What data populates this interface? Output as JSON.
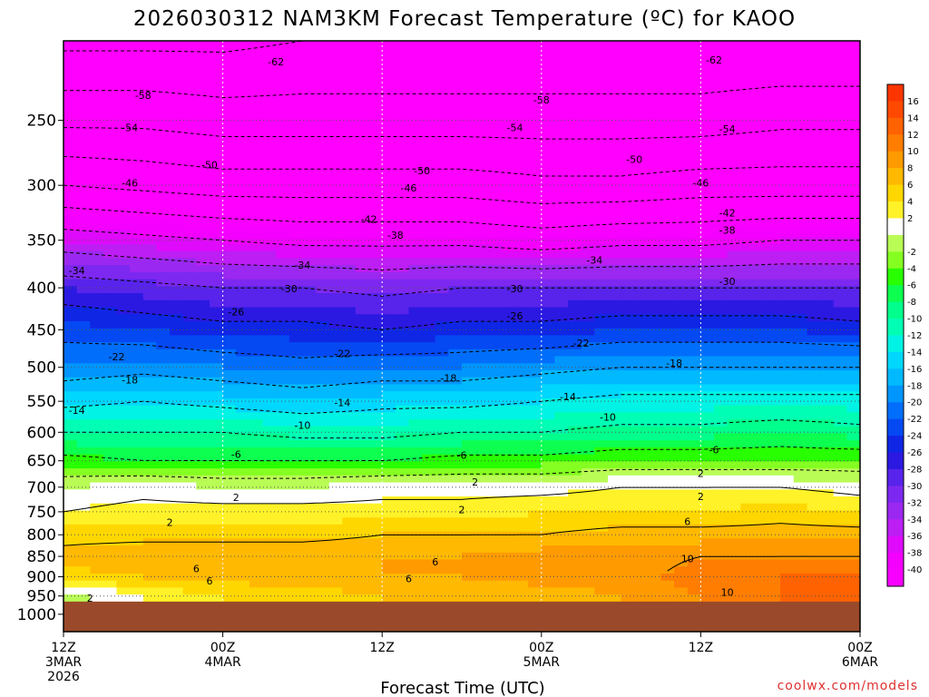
{
  "chart_data": {
    "type": "heatmap",
    "title": "2026030312 NAM3KM Forecast Temperature (ºC) for KAOO",
    "xlabel": "Forecast Time (UTC)",
    "ylabel": "",
    "y_scale": "log-pressure",
    "ylim": [
      1050,
      200
    ],
    "y_ticks": [
      250,
      300,
      350,
      400,
      450,
      500,
      550,
      600,
      650,
      700,
      750,
      800,
      850,
      900,
      950,
      1000
    ],
    "x_range_hours": [
      0,
      60
    ],
    "x_ticks": [
      {
        "hour": 0,
        "lines": [
          "12Z",
          "3MAR",
          "2026"
        ]
      },
      {
        "hour": 12,
        "lines": [
          "00Z",
          "4MAR"
        ]
      },
      {
        "hour": 24,
        "lines": [
          "12Z"
        ]
      },
      {
        "hour": 36,
        "lines": [
          "00Z",
          "5MAR"
        ]
      },
      {
        "hour": 48,
        "lines": [
          "12Z"
        ]
      },
      {
        "hour": 60,
        "lines": [
          "00Z",
          "6MAR"
        ]
      }
    ],
    "ground_pressure": 965,
    "times_hours": [
      0,
      6,
      12,
      18,
      24,
      30,
      36,
      42,
      48,
      54,
      60
    ],
    "pressure_levels": [
      200,
      250,
      300,
      350,
      400,
      450,
      500,
      550,
      600,
      650,
      700,
      750,
      800,
      850,
      900,
      950
    ],
    "temperature_columns": [
      [
        -63,
        -55,
        -46,
        -36,
        -28,
        -23,
        -20,
        -15,
        -10,
        -5,
        0,
        2,
        5,
        7,
        5,
        -1
      ],
      [
        -63,
        -55,
        -47,
        -37,
        -29,
        -24,
        -19,
        -14,
        -10,
        -6,
        1,
        3,
        5,
        8,
        6,
        2
      ],
      [
        -63,
        -56,
        -48,
        -38,
        -30,
        -25,
        -20,
        -15,
        -10,
        -6,
        0,
        3,
        5,
        8,
        7,
        4
      ],
      [
        -62,
        -56,
        -48,
        -39,
        -30,
        -25,
        -21,
        -16,
        -11,
        -6,
        0,
        3,
        5,
        8,
        7,
        5
      ],
      [
        -62,
        -56,
        -48,
        -39,
        -31,
        -26,
        -20,
        -15,
        -11,
        -6,
        1,
        3,
        6,
        8,
        8,
        6
      ],
      [
        -62,
        -56,
        -48,
        -39,
        -30,
        -25,
        -20,
        -15,
        -10,
        -5,
        1,
        3,
        6,
        8,
        8,
        6
      ],
      [
        -62,
        -56,
        -49,
        -40,
        -30,
        -25,
        -19,
        -14,
        -10,
        -5,
        1,
        4,
        6,
        9,
        9,
        7
      ],
      [
        -62,
        -56,
        -49,
        -39,
        -30,
        -24,
        -18,
        -13,
        -9,
        -4,
        2,
        4,
        7,
        9,
        9,
        8
      ],
      [
        -62,
        -56,
        -48,
        -39,
        -30,
        -24,
        -18,
        -13,
        -9,
        -4,
        2,
        4,
        7,
        10,
        11,
        10
      ],
      [
        -62,
        -55,
        -48,
        -38,
        -30,
        -24,
        -18,
        -13,
        -8,
        -4,
        2,
        5,
        7,
        10,
        12,
        12
      ],
      [
        -62,
        -55,
        -48,
        -38,
        -30,
        -25,
        -18,
        -13,
        -9,
        -4,
        1,
        4,
        7,
        10,
        12,
        13
      ]
    ],
    "contour_labels": [
      {
        "text": "-62",
        "t": 16,
        "p": 212
      },
      {
        "text": "-62",
        "t": 49,
        "p": 211
      },
      {
        "text": "-58",
        "t": 6,
        "p": 233
      },
      {
        "text": "-58",
        "t": 36,
        "p": 236
      },
      {
        "text": "-54",
        "t": 5,
        "p": 255
      },
      {
        "text": "-54",
        "t": 34,
        "p": 255
      },
      {
        "text": "-54",
        "t": 50,
        "p": 256
      },
      {
        "text": "-50",
        "t": 11,
        "p": 283
      },
      {
        "text": "-50",
        "t": 27,
        "p": 288
      },
      {
        "text": "-50",
        "t": 43,
        "p": 279
      },
      {
        "text": "-46",
        "t": 5,
        "p": 298
      },
      {
        "text": "-46",
        "t": 26,
        "p": 302
      },
      {
        "text": "-46",
        "t": 48,
        "p": 298
      },
      {
        "text": "-42",
        "t": 23,
        "p": 330
      },
      {
        "text": "-42",
        "t": 50,
        "p": 324
      },
      {
        "text": "-38",
        "t": 25,
        "p": 345
      },
      {
        "text": "-38",
        "t": 50,
        "p": 340
      },
      {
        "text": "-34",
        "t": 1,
        "p": 381
      },
      {
        "text": "-34",
        "t": 18,
        "p": 375
      },
      {
        "text": "-34",
        "t": 40,
        "p": 370
      },
      {
        "text": "-30",
        "t": 17,
        "p": 401
      },
      {
        "text": "-30",
        "t": 34,
        "p": 401
      },
      {
        "text": "-30",
        "t": 50,
        "p": 393
      },
      {
        "text": "-26",
        "t": 13,
        "p": 428
      },
      {
        "text": "-26",
        "t": 34,
        "p": 433
      },
      {
        "text": "-22",
        "t": 4,
        "p": 485
      },
      {
        "text": "-22",
        "t": 21,
        "p": 481
      },
      {
        "text": "-22",
        "t": 39,
        "p": 467
      },
      {
        "text": "-18",
        "t": 5,
        "p": 518
      },
      {
        "text": "-18",
        "t": 29,
        "p": 515
      },
      {
        "text": "-18",
        "t": 46,
        "p": 494
      },
      {
        "text": "-14",
        "t": 1,
        "p": 564
      },
      {
        "text": "-14",
        "t": 21,
        "p": 552
      },
      {
        "text": "-14",
        "t": 38,
        "p": 543
      },
      {
        "text": "-10",
        "t": 18,
        "p": 588
      },
      {
        "text": "-10",
        "t": 41,
        "p": 575
      },
      {
        "text": "-6",
        "t": 13,
        "p": 638
      },
      {
        "text": "-6",
        "t": 30,
        "p": 640
      },
      {
        "text": "-6",
        "t": 49,
        "p": 630
      },
      {
        "text": "2",
        "t": 31,
        "p": 690
      },
      {
        "text": "2",
        "t": 48,
        "p": 673
      },
      {
        "text": "2",
        "t": 13,
        "p": 720
      },
      {
        "text": "2",
        "t": 30,
        "p": 745
      },
      {
        "text": "2",
        "t": 48,
        "p": 718
      },
      {
        "text": "2",
        "t": 8,
        "p": 772
      },
      {
        "text": "2",
        "t": 2,
        "p": 955
      },
      {
        "text": "6",
        "t": 47,
        "p": 771
      },
      {
        "text": "6",
        "t": 10,
        "p": 880
      },
      {
        "text": "6",
        "t": 28,
        "p": 863
      },
      {
        "text": "6",
        "t": 11,
        "p": 910
      },
      {
        "text": "6",
        "t": 26,
        "p": 905
      },
      {
        "text": "10",
        "t": 47,
        "p": 855
      },
      {
        "text": "10",
        "t": 50,
        "p": 940
      }
    ],
    "colorbar": {
      "min": -42,
      "max": 18,
      "step": 2,
      "tick_labels": [
        "16",
        "14",
        "12",
        "10",
        "8",
        "6",
        "4",
        "2",
        "-2",
        "-4",
        "-6",
        "-8",
        "-10",
        "-12",
        "-14",
        "-16",
        "-18",
        "-20",
        "-22",
        "-24",
        "-26",
        "-28",
        "-30",
        "-32",
        "-34",
        "-36",
        "-38",
        "-40"
      ]
    },
    "colors": {
      "ground": "#9a4a2a",
      "freezing_line": "#e0007a",
      "background": "#ffffff"
    }
  },
  "credit": "coolwx.com/models"
}
